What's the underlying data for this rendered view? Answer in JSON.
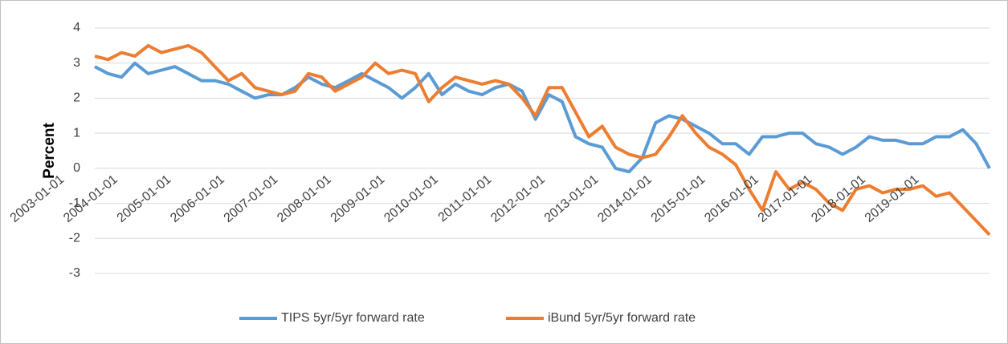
{
  "chart_data": {
    "type": "line",
    "y_label": "Percent",
    "categories": [
      "2003-01-01",
      null,
      null,
      null,
      "2004-01-01",
      null,
      null,
      null,
      "2005-01-01",
      null,
      null,
      null,
      "2006-01-01",
      null,
      null,
      null,
      "2007-01-01",
      null,
      null,
      null,
      "2008-01-01",
      null,
      null,
      null,
      "2009-01-01",
      null,
      null,
      null,
      "2010-01-01",
      null,
      null,
      null,
      "2011-01-01",
      null,
      null,
      null,
      "2012-01-01",
      null,
      null,
      null,
      "2013-01-01",
      null,
      null,
      null,
      "2014-01-01",
      null,
      null,
      null,
      "2015-01-01",
      null,
      null,
      null,
      "2016-01-01",
      null,
      null,
      null,
      "2017-01-01",
      null,
      null,
      null,
      "2018-01-01",
      null,
      null,
      null,
      "2019-01-01",
      null,
      null,
      null
    ],
    "series": [
      {
        "name": "TIPS 5yr/5yr forward rate",
        "color": "#5b9bd5",
        "values": [
          2.9,
          2.7,
          2.6,
          3.0,
          2.7,
          2.8,
          2.9,
          2.7,
          2.5,
          2.5,
          2.4,
          2.2,
          2.0,
          2.1,
          2.1,
          2.3,
          2.6,
          2.4,
          2.3,
          2.5,
          2.7,
          2.5,
          2.3,
          2.0,
          2.3,
          2.7,
          2.1,
          2.4,
          2.2,
          2.1,
          2.3,
          2.4,
          2.2,
          1.4,
          2.1,
          1.9,
          0.9,
          0.7,
          0.6,
          0.0,
          -0.1,
          0.3,
          1.3,
          1.5,
          1.4,
          1.2,
          1.0,
          0.7,
          0.7,
          0.4,
          0.9,
          0.9,
          1.0,
          1.0,
          0.7,
          0.6,
          0.4,
          0.6,
          0.9,
          0.8,
          0.8,
          0.7,
          0.7,
          0.9,
          0.9,
          1.1,
          0.7,
          0.0
        ]
      },
      {
        "name": "iBund 5yr/5yr forward rate",
        "color": "#ed7d31",
        "values": [
          3.2,
          3.1,
          3.3,
          3.2,
          3.5,
          3.3,
          3.4,
          3.5,
          3.3,
          2.9,
          2.5,
          2.7,
          2.3,
          2.2,
          2.1,
          2.2,
          2.7,
          2.6,
          2.2,
          2.4,
          2.6,
          3.0,
          2.7,
          2.8,
          2.7,
          1.9,
          2.3,
          2.6,
          2.5,
          2.4,
          2.5,
          2.4,
          2.0,
          1.5,
          2.3,
          2.3,
          1.6,
          0.9,
          1.2,
          0.6,
          0.4,
          0.3,
          0.4,
          0.9,
          1.5,
          1.0,
          0.6,
          0.4,
          0.1,
          -0.6,
          -1.2,
          -0.1,
          -0.6,
          -0.4,
          -0.6,
          -1.0,
          -1.2,
          -0.6,
          -0.5,
          -0.7,
          -0.6,
          -0.6,
          -0.5,
          -0.8,
          -0.7,
          -1.1,
          -1.5,
          -1.9
        ]
      }
    ],
    "ylim": [
      -3,
      4
    ],
    "yticks": [
      -3,
      -2,
      -1,
      0,
      1,
      2,
      3,
      4
    ],
    "grid": true
  }
}
